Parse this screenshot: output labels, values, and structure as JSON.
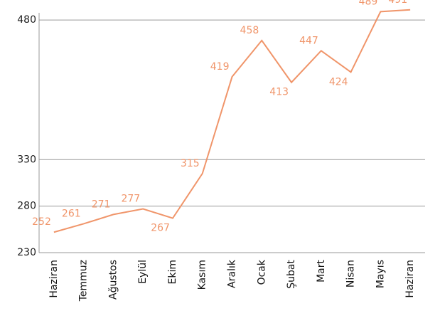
{
  "chart_data": {
    "type": "line",
    "categories": [
      "Haziran",
      "Temmuz",
      "Ağustos",
      "Eylül",
      "Ekim",
      "Kasım",
      "Aralık",
      "Ocak",
      "Şubat",
      "Mart",
      "Nisan",
      "Mayıs",
      "Haziran"
    ],
    "values": [
      252,
      261,
      271,
      277,
      267,
      315,
      419,
      458,
      413,
      447,
      424,
      489,
      491
    ],
    "color": "#f0956a",
    "ylim": [
      230,
      500
    ],
    "yticks": [
      230,
      280,
      330,
      480
    ],
    "grid": true
  }
}
